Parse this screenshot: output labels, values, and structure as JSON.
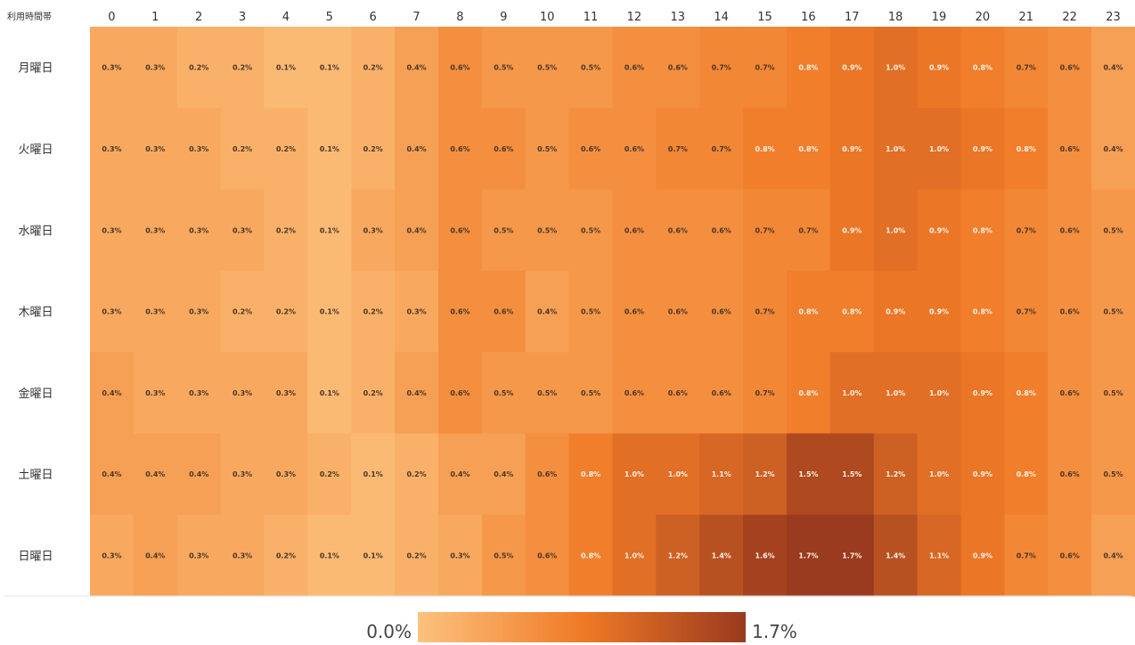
{
  "chart_data": {
    "type": "heatmap",
    "corner_label": "利用時間帯",
    "x": [
      "0",
      "1",
      "2",
      "3",
      "4",
      "5",
      "6",
      "7",
      "8",
      "9",
      "10",
      "11",
      "12",
      "13",
      "14",
      "15",
      "16",
      "17",
      "18",
      "19",
      "20",
      "21",
      "22",
      "23"
    ],
    "y": [
      "月曜日",
      "火曜日",
      "水曜日",
      "木曜日",
      "金曜日",
      "土曜日",
      "日曜日"
    ],
    "values": [
      [
        0.3,
        0.3,
        0.2,
        0.2,
        0.1,
        0.1,
        0.2,
        0.4,
        0.6,
        0.5,
        0.5,
        0.5,
        0.6,
        0.6,
        0.7,
        0.7,
        0.8,
        0.9,
        1.0,
        0.9,
        0.8,
        0.7,
        0.6,
        0.4
      ],
      [
        0.3,
        0.3,
        0.3,
        0.2,
        0.2,
        0.1,
        0.2,
        0.4,
        0.6,
        0.6,
        0.5,
        0.6,
        0.6,
        0.7,
        0.7,
        0.8,
        0.8,
        0.9,
        1.0,
        1.0,
        0.9,
        0.8,
        0.6,
        0.4
      ],
      [
        0.3,
        0.3,
        0.3,
        0.3,
        0.2,
        0.1,
        0.3,
        0.4,
        0.6,
        0.5,
        0.5,
        0.5,
        0.6,
        0.6,
        0.6,
        0.7,
        0.7,
        0.9,
        1.0,
        0.9,
        0.8,
        0.7,
        0.6,
        0.5
      ],
      [
        0.3,
        0.3,
        0.3,
        0.2,
        0.2,
        0.1,
        0.2,
        0.3,
        0.6,
        0.6,
        0.4,
        0.5,
        0.6,
        0.6,
        0.6,
        0.7,
        0.8,
        0.8,
        0.9,
        0.9,
        0.8,
        0.7,
        0.6,
        0.5
      ],
      [
        0.4,
        0.3,
        0.3,
        0.3,
        0.3,
        0.1,
        0.2,
        0.4,
        0.6,
        0.5,
        0.5,
        0.5,
        0.6,
        0.6,
        0.6,
        0.7,
        0.8,
        1.0,
        1.0,
        1.0,
        0.9,
        0.8,
        0.6,
        0.5
      ],
      [
        0.4,
        0.4,
        0.4,
        0.3,
        0.3,
        0.2,
        0.1,
        0.2,
        0.4,
        0.4,
        0.6,
        0.8,
        1.0,
        1.0,
        1.1,
        1.2,
        1.5,
        1.5,
        1.2,
        1.0,
        0.9,
        0.8,
        0.6,
        0.5
      ],
      [
        0.3,
        0.4,
        0.3,
        0.3,
        0.2,
        0.1,
        0.1,
        0.2,
        0.3,
        0.5,
        0.6,
        0.8,
        1.0,
        1.2,
        1.4,
        1.6,
        1.7,
        1.7,
        1.4,
        1.1,
        0.9,
        0.7,
        0.6,
        0.4
      ]
    ],
    "unit": "%",
    "colorscale": {
      "min": 0.0,
      "max": 1.7,
      "min_label": "0.0%",
      "max_label": "1.7%",
      "colors": [
        "#fcc27e",
        "#f07a26",
        "#9a3a1e"
      ]
    },
    "legend": "bottom-center",
    "grid": false
  }
}
